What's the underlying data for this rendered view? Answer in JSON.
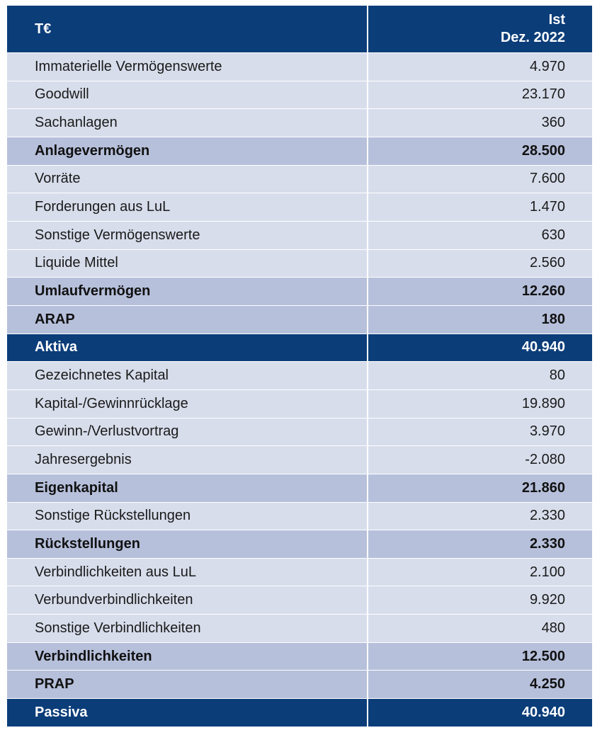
{
  "header": {
    "label": "T€",
    "value_line1": "Ist",
    "value_line2": "Dez. 2022"
  },
  "table": {
    "rows": [
      {
        "label": "Immaterielle Vermögenswerte",
        "value": "4.970",
        "style": "item"
      },
      {
        "label": "Goodwill",
        "value": "23.170",
        "style": "item"
      },
      {
        "label": "Sachanlagen",
        "value": "360",
        "style": "item"
      },
      {
        "label": "Anlagevermögen",
        "value": "28.500",
        "style": "subtotal"
      },
      {
        "label": "Vorräte",
        "value": "7.600",
        "style": "item"
      },
      {
        "label": "Forderungen aus LuL",
        "value": "1.470",
        "style": "item"
      },
      {
        "label": "Sonstige Vermögenswerte",
        "value": "630",
        "style": "item"
      },
      {
        "label": "Liquide Mittel",
        "value": "2.560",
        "style": "item"
      },
      {
        "label": "Umlaufvermögen",
        "value": "12.260",
        "style": "subtotal"
      },
      {
        "label": "ARAP",
        "value": "180",
        "style": "subtotal"
      },
      {
        "label": "Aktiva",
        "value": "40.940",
        "style": "total"
      },
      {
        "label": "Gezeichnetes Kapital",
        "value": "80",
        "style": "item"
      },
      {
        "label": "Kapital-/Gewinnrücklage",
        "value": "19.890",
        "style": "item"
      },
      {
        "label": "Gewinn-/Verlustvortrag",
        "value": "3.970",
        "style": "item"
      },
      {
        "label": "Jahresergebnis",
        "value": "-2.080",
        "style": "item"
      },
      {
        "label": "Eigenkapital",
        "value": "21.860",
        "style": "subtotal"
      },
      {
        "label": "Sonstige Rückstellungen",
        "value": "2.330",
        "style": "item"
      },
      {
        "label": "Rückstellungen",
        "value": "2.330",
        "style": "subtotal"
      },
      {
        "label": "Verbindlichkeiten aus LuL",
        "value": "2.100",
        "style": "item"
      },
      {
        "label": "Verbundverbindlichkeiten",
        "value": "9.920",
        "style": "item"
      },
      {
        "label": "Sonstige Verbindlichkeiten",
        "value": "480",
        "style": "item"
      },
      {
        "label": "Verbindlichkeiten",
        "value": "12.500",
        "style": "subtotal"
      },
      {
        "label": "PRAP",
        "value": "4.250",
        "style": "subtotal"
      },
      {
        "label": "Passiva",
        "value": "40.940",
        "style": "total"
      }
    ]
  }
}
